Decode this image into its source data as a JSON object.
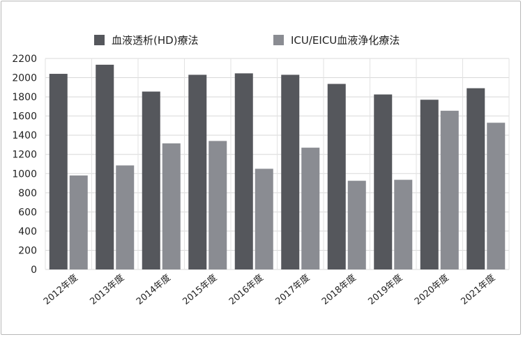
{
  "chart_data": {
    "type": "bar",
    "categories": [
      "2012年度",
      "2013年度",
      "2014年度",
      "2015年度",
      "2016年度",
      "2017年度",
      "2018年度",
      "2019年度",
      "2020年度",
      "2021年度"
    ],
    "series": [
      {
        "name": "血液透析(HD)療法",
        "color": "#55575c",
        "values": [
          2040,
          2135,
          1855,
          2030,
          2045,
          2030,
          1935,
          1825,
          1770,
          1890
        ]
      },
      {
        "name": "ICU/EICU血液浄化療法",
        "color": "#8a8c92",
        "values": [
          980,
          1085,
          1315,
          1340,
          1050,
          1270,
          925,
          935,
          1655,
          1530
        ]
      }
    ],
    "ylim": [
      0,
      2200
    ],
    "yticks": [
      0,
      200,
      400,
      600,
      800,
      1000,
      1200,
      1400,
      1600,
      1800,
      2000,
      2200
    ],
    "grid": true,
    "legend": "top"
  }
}
